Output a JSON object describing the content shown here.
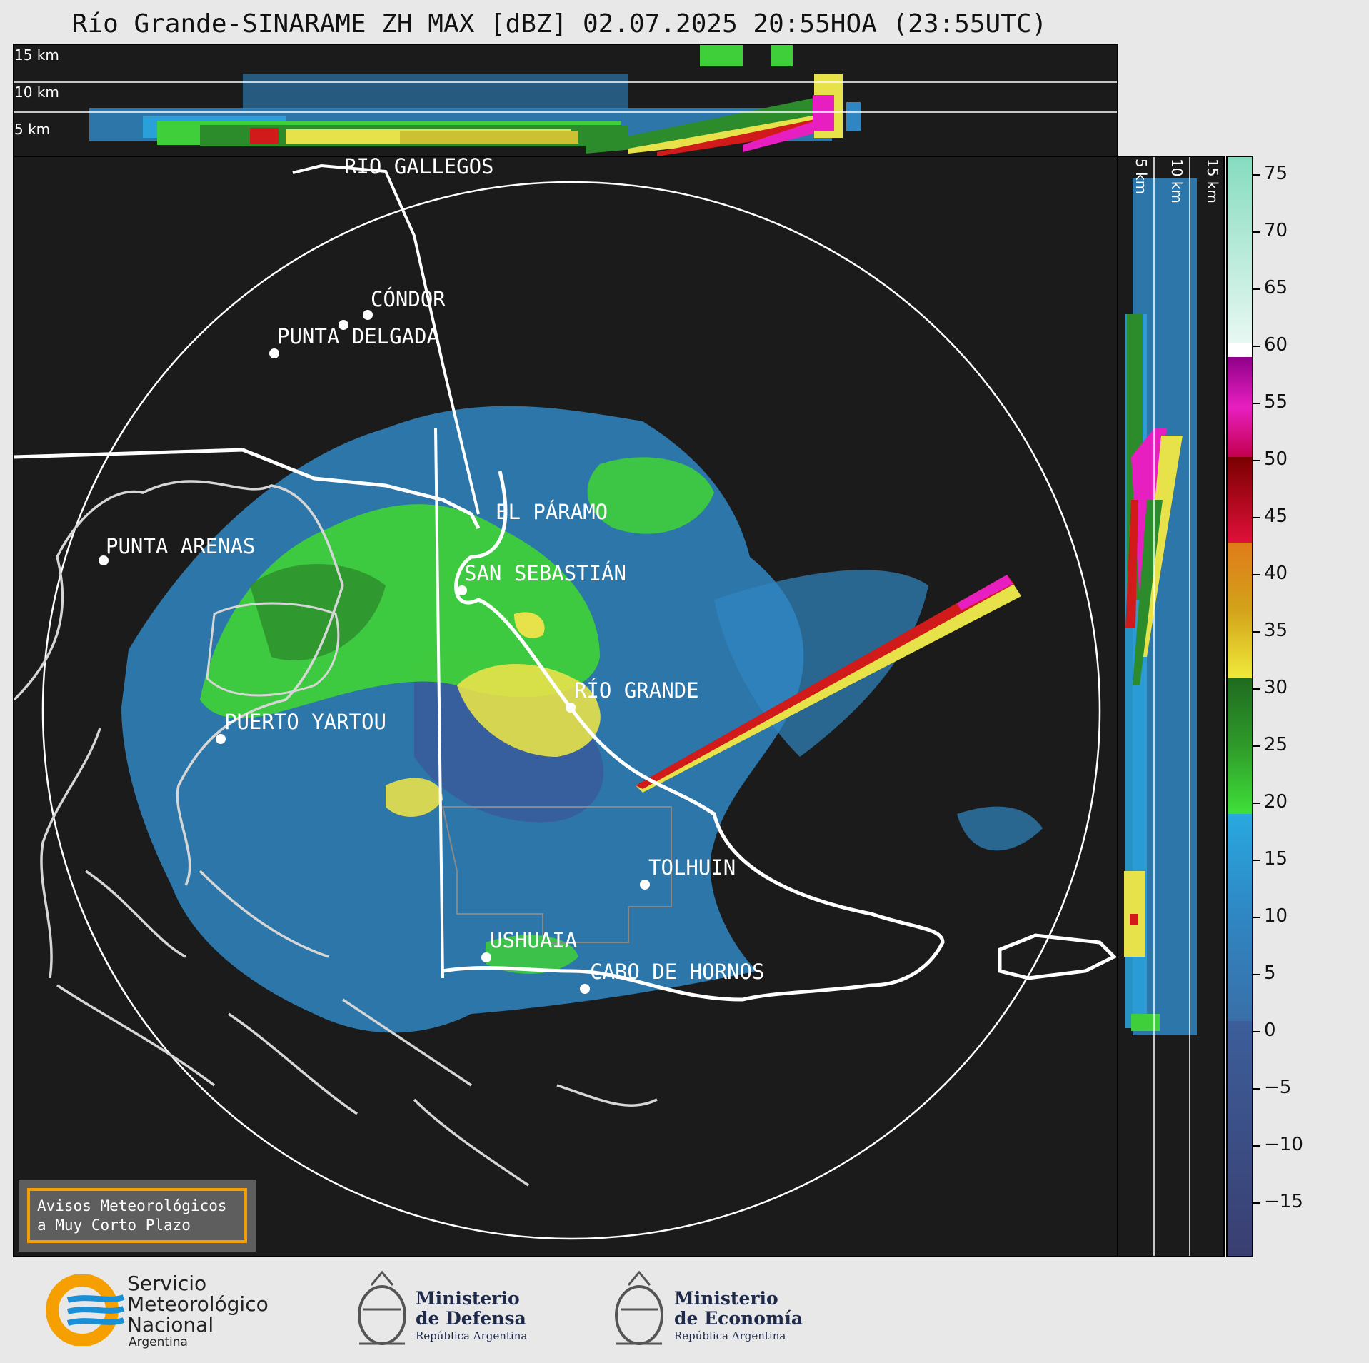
{
  "title": "Río Grande-SINARAME ZH MAX [dBZ] 02.07.2025 20:55HOA (23:55UTC)",
  "top_profile": {
    "km_labels": [
      "15 km",
      "10 km",
      "5 km"
    ]
  },
  "side_profile": {
    "km_labels": [
      "5 km",
      "10 km",
      "15 km"
    ]
  },
  "colorbar": {
    "unit": "dBZ",
    "ticks": [
      "75",
      "70",
      "65",
      "60",
      "55",
      "50",
      "45",
      "40",
      "35",
      "30",
      "25",
      "20",
      "15",
      "10",
      "5",
      "0",
      "−5",
      "−10",
      "−15"
    ],
    "range": [
      -20,
      77
    ]
  },
  "cities": [
    "RÍO GALLEGOS",
    "CÓNDOR",
    "PUNTA DELGADA",
    "EL PÁRAMO",
    "PUNTA ARENAS",
    "SAN SEBASTIÁN",
    "RÍO GRANDE",
    "PUERTO YARTOU",
    "TOLHUIN",
    "USHUAIA",
    "CABO DE HORNOS"
  ],
  "aviso": {
    "line1": "Avisos Meteorológicos",
    "line2": "a Muy Corto Plazo"
  },
  "logos": {
    "smn": {
      "line1": "Servicio",
      "line2": "Meteorológico",
      "line3": "Nacional",
      "line4": "Argentina"
    },
    "defensa": {
      "line1": "Ministerio",
      "line2": "de Defensa",
      "line3": "República Argentina"
    },
    "economia": {
      "line1": "Ministerio",
      "line2": "de Economía",
      "line3": "República Argentina"
    }
  },
  "colors": {
    "accent": "#f5a000",
    "smn_blue": "#1a8fd6",
    "smn_orange": "#f5a000",
    "ministry_navy": "#1f2a4a"
  }
}
